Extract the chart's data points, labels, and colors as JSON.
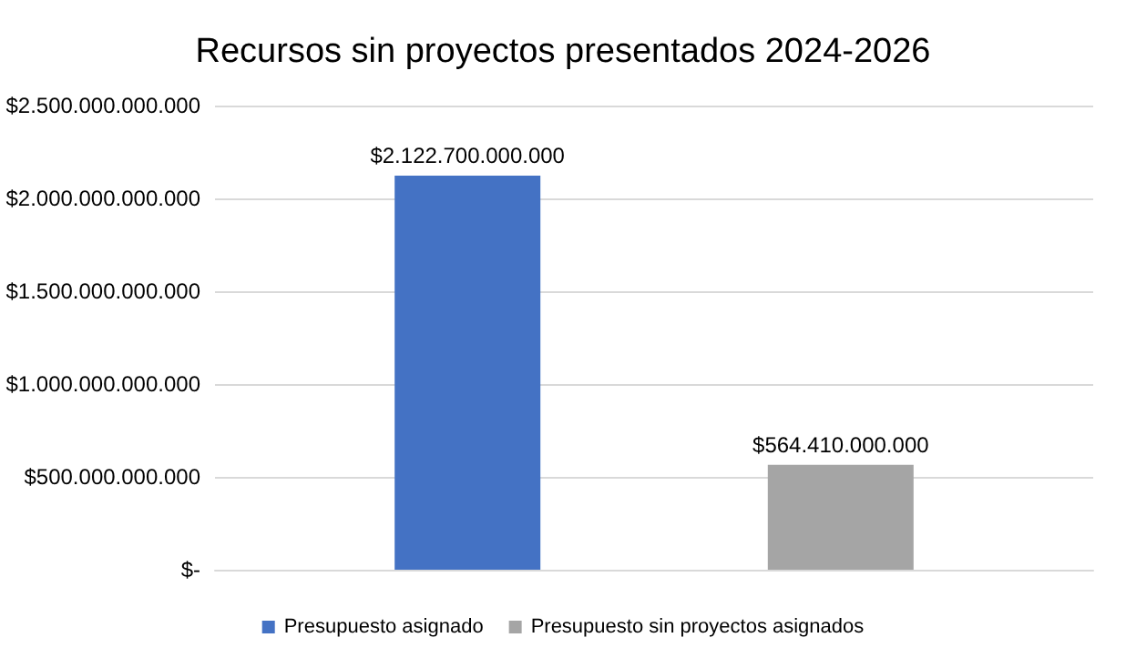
{
  "chart_data": {
    "type": "bar",
    "title": "Recursos sin proyectos presentados 2024-2026",
    "categories": [
      null
    ],
    "series": [
      {
        "name": "Presupuesto asignado",
        "color": "#4472c4",
        "values": [
          2122700000000
        ],
        "value_labels": [
          "$2.122.700.000.000"
        ]
      },
      {
        "name": "Presupuesto sin proyectos asignados",
        "color": "#a5a5a5",
        "values": [
          564410000000
        ],
        "value_labels": [
          "$564.410.000.000"
        ]
      }
    ],
    "ylim": [
      0,
      2500000000000
    ],
    "yticks": [
      {
        "value": 0,
        "label": "$-"
      },
      {
        "value": 500000000000,
        "label": "$500.000.000.000"
      },
      {
        "value": 1000000000000,
        "label": "$1.000.000.000.000"
      },
      {
        "value": 1500000000000,
        "label": "$1.500.000.000.000"
      },
      {
        "value": 2000000000000,
        "label": "$2.000.000.000.000"
      },
      {
        "value": 2500000000000,
        "label": "$2.500.000.000.000"
      }
    ],
    "grid": "y",
    "legend": "bottom"
  }
}
